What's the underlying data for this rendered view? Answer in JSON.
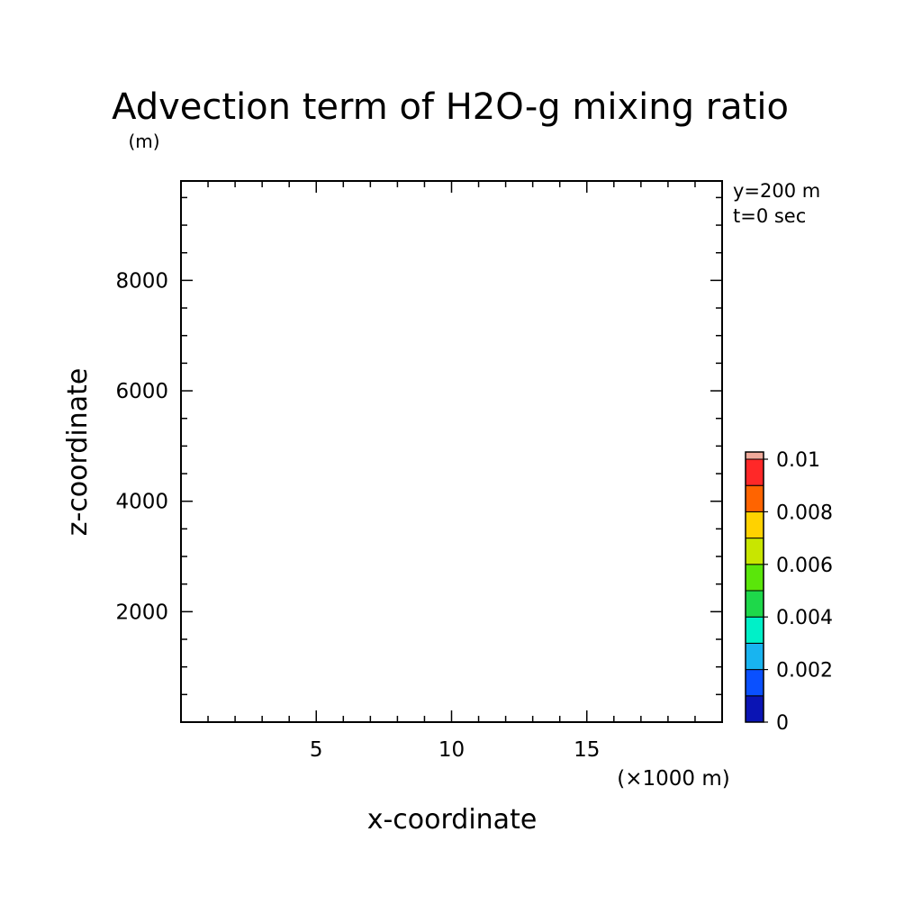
{
  "chart_data": {
    "type": "heatmap",
    "title": "Advection term of H2O-g mixing ratio",
    "xlabel": "x-coordinate",
    "ylabel": "z-coordinate",
    "y_unit": "(m)",
    "x_unit": "(×1000 m)",
    "annotations": [
      "y=200 m",
      "t=0 sec"
    ],
    "xlim": [
      0,
      20
    ],
    "ylim": [
      0,
      9800
    ],
    "x_ticks": [
      5,
      10,
      15
    ],
    "x_tick_labels": [
      "5",
      "10",
      "15"
    ],
    "y_ticks": [
      2000,
      4000,
      6000,
      8000
    ],
    "y_tick_labels": [
      "2000",
      "4000",
      "6000",
      "8000"
    ],
    "x_minor_step": 1,
    "y_minor_step": 500,
    "values": [],
    "grid": false,
    "colorbar": {
      "placement": "right",
      "min": 0,
      "max": 0.01,
      "labels": [
        "0",
        "0.002",
        "0.004",
        "0.006",
        "0.008",
        "0.01"
      ],
      "label_values": [
        0,
        0.002,
        0.004,
        0.006,
        0.008,
        0.01
      ],
      "colors": [
        "#0a14b4",
        "#0a50ff",
        "#18b4f0",
        "#00f0c8",
        "#1ed84a",
        "#5ae60a",
        "#c8e600",
        "#ffd200",
        "#ff6400",
        "#ff2828",
        "#f0aa9b"
      ]
    }
  }
}
